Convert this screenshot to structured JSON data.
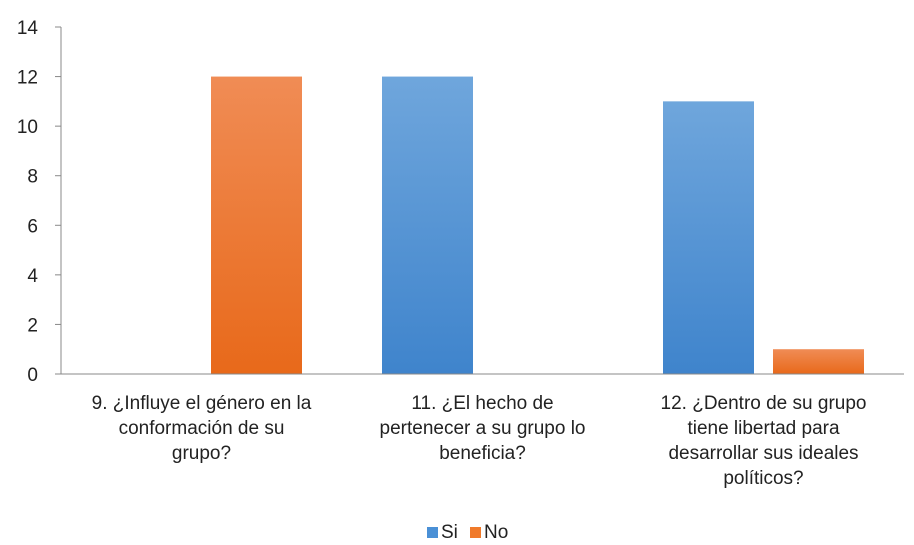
{
  "chart_data": {
    "type": "bar",
    "categories": [
      [
        "9. ¿Influye el género en la",
        "conformación de su",
        "grupo?"
      ],
      [
        "11. ¿El hecho de",
        "pertenecer a su grupo lo",
        "beneficia?"
      ],
      [
        "12. ¿Dentro de su grupo",
        "tiene libertad para",
        "desarrollar sus ideales",
        "políticos?"
      ]
    ],
    "series": [
      {
        "name": "Si",
        "values": [
          0,
          12,
          11
        ],
        "color": "#4a90d6"
      },
      {
        "name": "No",
        "values": [
          12,
          0,
          1
        ],
        "color": "#f07a2a"
      }
    ],
    "ylim": [
      0,
      14
    ],
    "yticks": [
      0,
      2,
      4,
      6,
      8,
      10,
      12,
      14
    ],
    "grid": false,
    "legend": "bottom-center"
  }
}
